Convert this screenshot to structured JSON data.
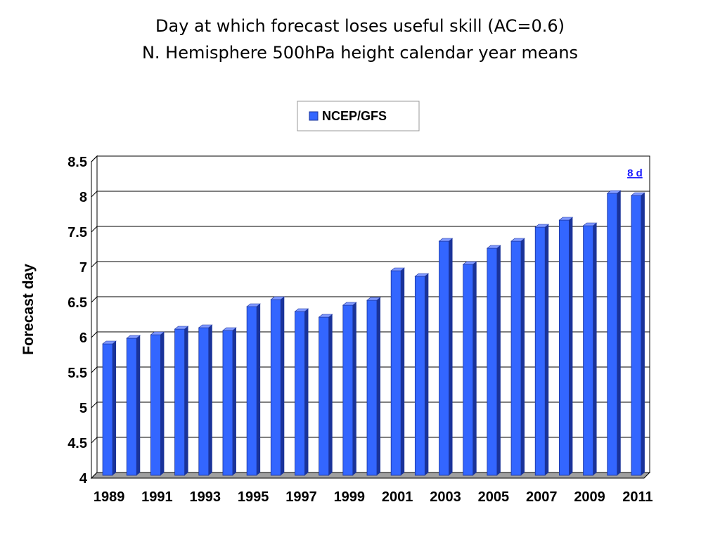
{
  "title_line1": "Day at which forecast loses useful skill (AC=0.6)",
  "title_line2": "N. Hemisphere 500hPa height calendar year means",
  "chart_data": {
    "type": "bar",
    "title": "Day at which forecast loses useful skill (AC=0.6) N. Hemisphere 500hPa height calendar year means",
    "xlabel": "",
    "ylabel": "Forecast day",
    "ylim": [
      4,
      8.5
    ],
    "y_ticks": [
      "4",
      "4.5",
      "5",
      "5.5",
      "6",
      "6.5",
      "7",
      "7.5",
      "8",
      "8.5"
    ],
    "x_tick_labels": [
      "1989",
      "1991",
      "1993",
      "1995",
      "1997",
      "1999",
      "2001",
      "2003",
      "2005",
      "2007",
      "2009",
      "2011"
    ],
    "categories": [
      1989,
      1990,
      1991,
      1992,
      1993,
      1994,
      1995,
      1996,
      1997,
      1998,
      1999,
      2000,
      2001,
      2002,
      2003,
      2004,
      2005,
      2006,
      2007,
      2008,
      2009,
      2010,
      2011
    ],
    "series": [
      {
        "name": "NCEP/GFS",
        "values": [
          5.87,
          5.95,
          6.0,
          6.08,
          6.1,
          6.06,
          6.4,
          6.5,
          6.33,
          6.25,
          6.42,
          6.49,
          6.91,
          6.83,
          7.33,
          7.0,
          7.23,
          7.33,
          7.53,
          7.63,
          7.55,
          8.01,
          7.98
        ]
      }
    ],
    "annotations": [
      {
        "text": "8 d",
        "x": 2011,
        "y": 8.27
      }
    ],
    "legend_position": "top-center",
    "grid": true,
    "colors": {
      "bar_front": "#3366ff",
      "bar_side": "#1a3399",
      "bar_top": "#8099ff",
      "floor": "#a0a0a0",
      "gridline": "#000000",
      "annotation": "#1a1aff"
    }
  }
}
